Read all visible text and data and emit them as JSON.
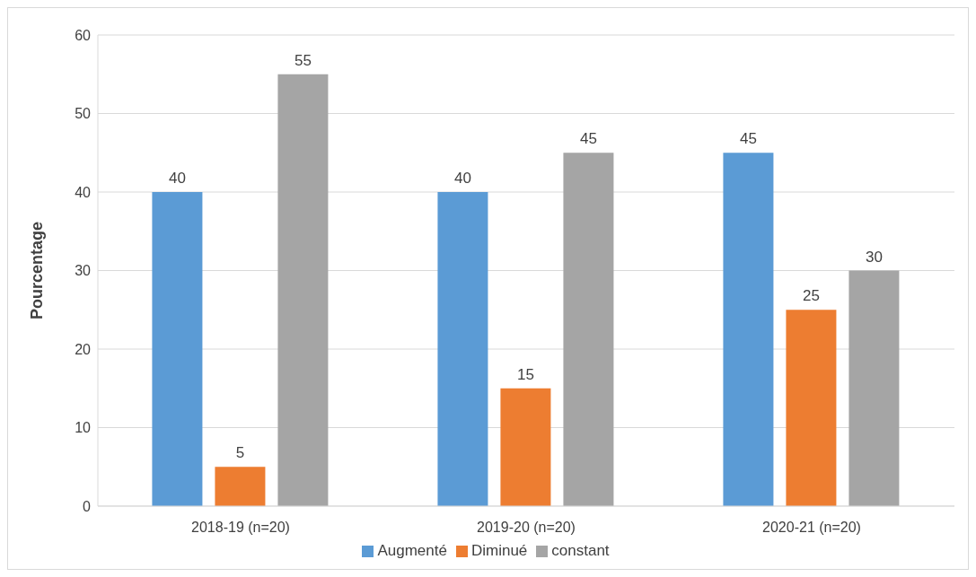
{
  "chart_data": {
    "type": "bar",
    "ylabel": "Pourcentage",
    "categories": [
      "2018-19 (n=20)",
      "2019-20 (n=20)",
      "2020-21 (n=20)"
    ],
    "series": [
      {
        "name": "Augmenté",
        "color": "#5b9bd5",
        "values": [
          40,
          40,
          45
        ]
      },
      {
        "name": "Diminué",
        "color": "#ed7d31",
        "values": [
          5,
          15,
          25
        ]
      },
      {
        "name": "constant",
        "color": "#a5a5a5",
        "values": [
          55,
          45,
          30
        ]
      }
    ],
    "ylim": [
      0,
      60
    ],
    "yticks": [
      0,
      10,
      20,
      30,
      40,
      50,
      60
    ],
    "grid": "y",
    "legend": "bottom",
    "data_labels": true
  }
}
